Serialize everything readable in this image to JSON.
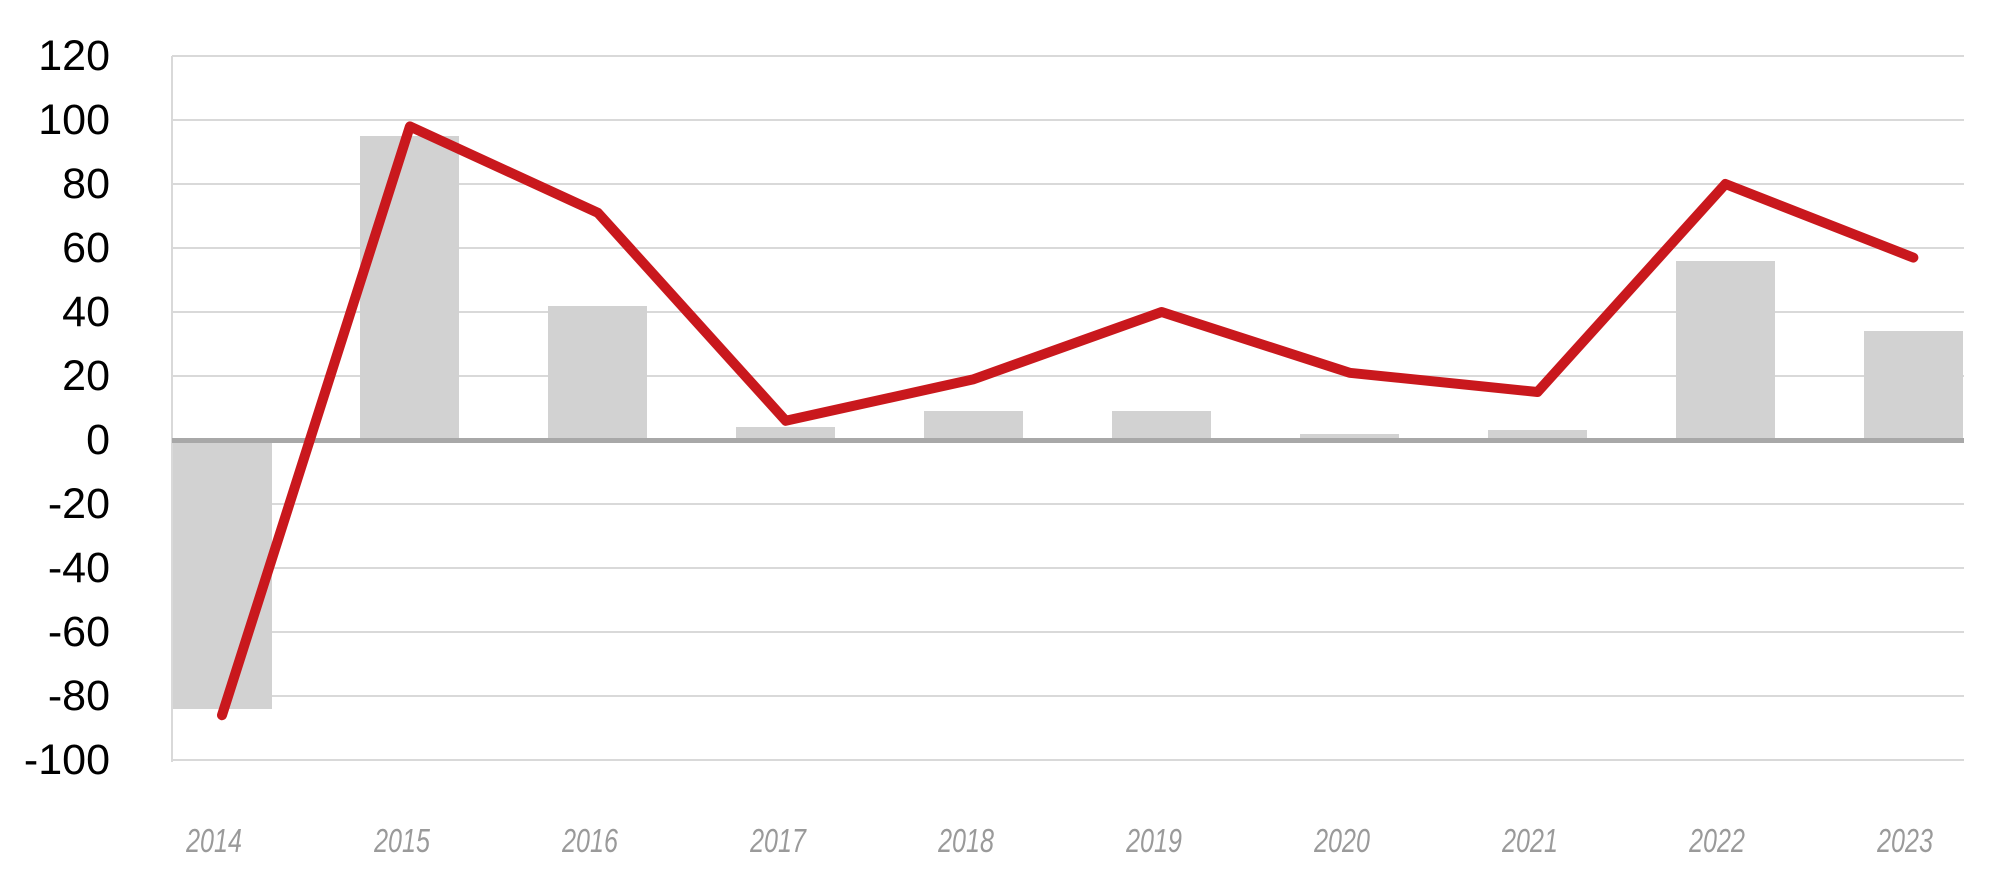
{
  "chart_data": {
    "type": "combo",
    "title": "",
    "xlabel": "",
    "ylabel": "",
    "categories": [
      "2014",
      "2015",
      "2016",
      "2017",
      "2018",
      "2019",
      "2020",
      "2021",
      "2022",
      "2023"
    ],
    "series": [
      {
        "name": "bar-series",
        "type": "bar",
        "color": "#D2D2D2",
        "values": [
          -84,
          95,
          42,
          4,
          9,
          9,
          2,
          3,
          56,
          34
        ]
      },
      {
        "name": "line-series",
        "type": "line",
        "color": "#C9181D",
        "values": [
          -86,
          98,
          71,
          6,
          19,
          40,
          21,
          15,
          80,
          57
        ]
      }
    ],
    "ylim": [
      -100,
      120
    ],
    "yticks": [
      120,
      100,
      80,
      60,
      40,
      20,
      0,
      -20,
      -40,
      -60,
      -80,
      -100
    ],
    "grid": true,
    "legend": false
  },
  "colors": {
    "background": "#FFFFFF",
    "gridline": "#D9D9D9",
    "zero_line": "#A8A8A8",
    "axis_line": "#D9D9D9",
    "y_tick_label": "#000000",
    "x_tick_label": "#9A9A9A",
    "bar_fill": "#D2D2D2",
    "line_stroke": "#C9181D"
  }
}
